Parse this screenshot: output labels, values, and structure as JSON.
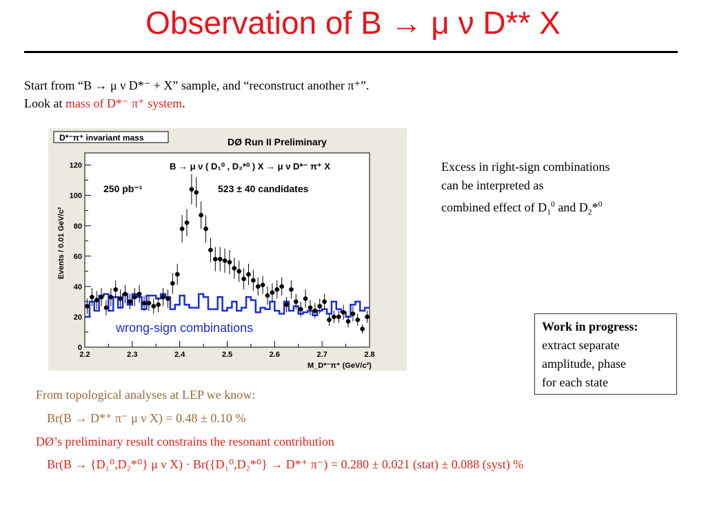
{
  "slide": {
    "title": "Observation of B → μ ν D** X",
    "intro_line1": "Start from “B → μ ν D*⁻ + X” sample, and “reconstruct another π⁺”.",
    "intro_line2_prefix": "Look at ",
    "intro_line2_highlight": "mass of D*⁻ π⁺ system",
    "intro_line2_suffix": ".",
    "note_line1": "Excess in right-sign combinations",
    "note_line2": "can be interpreted as",
    "note_line3_prefix": "combined effect of D",
    "note_line3_mid": "and D",
    "wip_title": "Work in progress:",
    "wip_line1": "extract separate",
    "wip_line2": "amplitude, phase",
    "wip_line3": "for each state",
    "lep_heading": "From topological analyses at LEP we know:",
    "lep_result": "Br(B → D*⁺ π⁻ μ ν X) = 0.48 ± 0.10 %",
    "d0_heading": "DØ’s preliminary result constrains the resonant contribution",
    "d0_result": "Br(B → {D₁⁰,D₂*⁰} μ ν X) · Br({D₁⁰,D₂*⁰} → D*⁺ π⁻) = 0.280 ± 0.021 (stat) ± 0.088 (syst) %"
  },
  "chart_data": {
    "type": "scatter",
    "title_box": "D*⁻π⁺ invariant mass",
    "header": "DØ Run II Preliminary",
    "process": "B → μ ν ( D₁⁰ , D₂*⁰ ) X → μ ν D*⁻ π⁺ X",
    "luminosity": "250 pb⁻¹",
    "candidates": "523 ± 40 candidates",
    "xlabel": "M_D*⁻π⁺  (GeV/c²)",
    "ylabel": "Events / 0.01 GeV/c²",
    "xlim": [
      2.2,
      2.8
    ],
    "ylim": [
      0,
      128
    ],
    "xticks": [
      "2.2",
      "2.3",
      "2.4",
      "2.5",
      "2.6",
      "2.7",
      "2.8"
    ],
    "yticks": [
      "0",
      "20",
      "40",
      "60",
      "80",
      "100",
      "120"
    ],
    "colors": {
      "right_sign": "#000000",
      "wrong_sign": "#1a2ed8",
      "annotation": "#1a2ed8"
    },
    "series": [
      {
        "name": "right-sign",
        "x": [
          2.205,
          2.215,
          2.225,
          2.235,
          2.245,
          2.255,
          2.265,
          2.275,
          2.285,
          2.295,
          2.305,
          2.315,
          2.325,
          2.335,
          2.345,
          2.355,
          2.365,
          2.375,
          2.385,
          2.395,
          2.405,
          2.415,
          2.425,
          2.435,
          2.445,
          2.455,
          2.465,
          2.475,
          2.485,
          2.495,
          2.505,
          2.515,
          2.525,
          2.535,
          2.545,
          2.555,
          2.565,
          2.575,
          2.585,
          2.595,
          2.605,
          2.615,
          2.625,
          2.635,
          2.645,
          2.655,
          2.665,
          2.675,
          2.685,
          2.695,
          2.705,
          2.715,
          2.725,
          2.735,
          2.745,
          2.755,
          2.765,
          2.775,
          2.785,
          2.795
        ],
        "values": [
          27,
          33,
          31,
          33,
          26,
          33,
          38,
          32,
          35,
          30,
          33,
          35,
          29,
          29,
          27,
          28,
          33,
          32,
          42,
          48,
          78,
          82,
          104,
          102,
          87,
          78,
          64,
          58,
          58,
          57,
          56,
          52,
          50,
          45,
          48,
          44,
          40,
          41,
          34,
          36,
          38,
          40,
          28,
          38,
          30,
          25,
          32,
          26,
          24,
          27,
          30,
          18,
          20,
          20,
          23,
          17,
          22,
          18,
          12,
          20
        ],
        "errors": [
          5,
          6,
          6,
          6,
          5,
          6,
          6,
          6,
          6,
          5,
          6,
          6,
          5,
          5,
          5,
          5,
          6,
          6,
          7,
          7,
          9,
          9,
          10,
          10,
          9,
          9,
          8,
          8,
          8,
          8,
          8,
          7,
          7,
          7,
          7,
          7,
          6,
          6,
          6,
          6,
          6,
          6,
          5,
          6,
          5,
          5,
          6,
          5,
          5,
          5,
          5,
          4,
          4,
          4,
          5,
          4,
          5,
          4,
          3,
          4
        ]
      },
      {
        "name": "wrong-sign combinations",
        "x": [
          2.205,
          2.215,
          2.225,
          2.235,
          2.245,
          2.255,
          2.265,
          2.275,
          2.285,
          2.295,
          2.305,
          2.315,
          2.325,
          2.335,
          2.345,
          2.355,
          2.365,
          2.375,
          2.385,
          2.395,
          2.405,
          2.415,
          2.425,
          2.435,
          2.445,
          2.455,
          2.465,
          2.475,
          2.485,
          2.495,
          2.505,
          2.515,
          2.525,
          2.535,
          2.545,
          2.555,
          2.565,
          2.575,
          2.585,
          2.595,
          2.605,
          2.615,
          2.625,
          2.635,
          2.645,
          2.655,
          2.665,
          2.675,
          2.685,
          2.695,
          2.705,
          2.715,
          2.725,
          2.735,
          2.745,
          2.755,
          2.765,
          2.775,
          2.785,
          2.795
        ],
        "values": [
          20,
          30,
          24,
          34,
          35,
          24,
          33,
          26,
          35,
          28,
          35,
          33,
          25,
          34,
          34,
          32,
          35,
          33,
          25,
          28,
          34,
          28,
          26,
          26,
          35,
          33,
          25,
          25,
          33,
          24,
          26,
          30,
          24,
          26,
          33,
          31,
          23,
          26,
          25,
          30,
          24,
          22,
          30,
          24,
          27,
          22,
          23,
          24,
          21,
          24,
          25,
          22,
          30,
          25,
          23,
          20,
          28,
          30,
          24,
          26
        ]
      }
    ],
    "annotation": "wrong-sign combinations"
  }
}
